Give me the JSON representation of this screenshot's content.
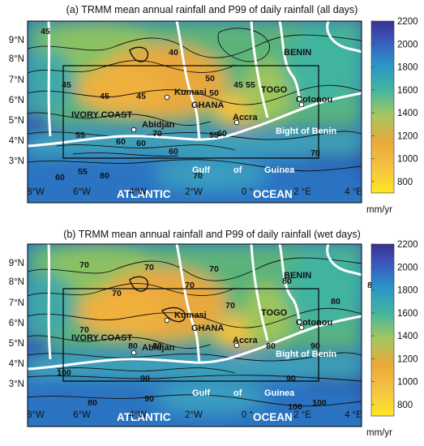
{
  "panels": [
    {
      "title": "(a) TRMM mean annual rainfall and P99 of daily rainfall (all days)",
      "contour_labels": [
        "45",
        "40",
        "45",
        "50",
        "45",
        "55",
        "50",
        "45",
        "45",
        "60",
        "60",
        "70",
        "55",
        "70",
        "60",
        "55",
        "60",
        "70",
        "60",
        "80",
        "55"
      ],
      "cities": [
        "Kumasi",
        "Accra",
        "Abidjan",
        "Cotonou"
      ],
      "countries": [
        "IVORY COAST",
        "GHANA",
        "TOGO",
        "BENIN"
      ],
      "water": [
        "Bight of Benin",
        "Gulf",
        "of",
        "Guinea",
        "ATLANTIC",
        "OCEAN"
      ]
    },
    {
      "title": "(b) TRMM mean annual rainfall and P99 of daily rainfall (wet days)",
      "contour_labels": [
        "70",
        "70",
        "70",
        "80",
        "70",
        "80",
        "70",
        "80",
        "80",
        "90",
        "70",
        "80",
        "80",
        "90",
        "100",
        "90",
        "100",
        "90",
        "100",
        "80",
        "70"
      ],
      "cities": [
        "Kumasi",
        "Accra",
        "Abidjan",
        "Cotonou"
      ],
      "countries": [
        "IVORY COAST",
        "GHANA",
        "TOGO",
        "BENIN"
      ],
      "water": [
        "Bight of Benin",
        "Gulf",
        "of",
        "Guinea",
        "ATLANTIC",
        "OCEAN"
      ]
    }
  ],
  "axes": {
    "lat_labels": [
      "9°N",
      "8°N",
      "7°N",
      "6°N",
      "5°N",
      "4°N",
      "3°N"
    ],
    "lon_labels": [
      "8°W",
      "6°W",
      "4°W",
      "2°W",
      "0 °",
      "2 °E",
      "4 °E"
    ],
    "lon_range": [
      -8.5,
      4.5
    ],
    "lat_range": [
      2,
      10
    ]
  },
  "colorbar": {
    "ticks": [
      "2200",
      "2000",
      "1800",
      "1600",
      "1400",
      "1200",
      "1000",
      "800"
    ],
    "unit": "mm/yr",
    "range": [
      700,
      2200
    ],
    "colors": [
      "#fde725",
      "#f5c242",
      "#e9a93a",
      "#a6c760",
      "#43b5a0",
      "#2a93c9",
      "#3a5bbd",
      "#3b2f92"
    ]
  },
  "colors": {
    "land_green": "#6ab675",
    "dry_orange": "#f0ae3c",
    "wet_blue": "#2f6cc1",
    "coast": "#ffffff",
    "box": "#000000"
  }
}
